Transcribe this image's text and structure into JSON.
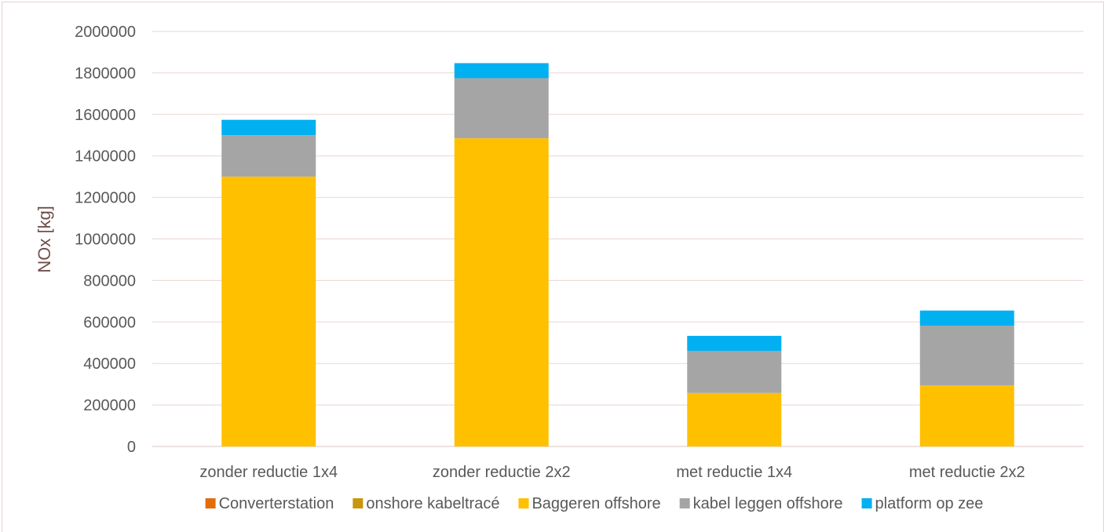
{
  "chart_data": {
    "type": "bar",
    "stacked": true,
    "ylabel": "NOx [kg]",
    "xlabel": "",
    "ylim": [
      0,
      2000000
    ],
    "yticks": [
      0,
      200000,
      400000,
      600000,
      800000,
      1000000,
      1200000,
      1400000,
      1600000,
      1800000,
      2000000
    ],
    "ytick_labels": [
      "0",
      "200000",
      "400000",
      "600000",
      "800000",
      "1000000",
      "1200000",
      "1400000",
      "1600000",
      "1800000",
      "2000000"
    ],
    "categories": [
      "zonder reductie 1x4",
      "zonder reductie 2x2",
      "met reductie 1x4",
      "met reductie 2x2"
    ],
    "grid": true,
    "legend_position": "bottom",
    "series": [
      {
        "name": "Converterstation",
        "color": "#e36c0a",
        "values": [
          0,
          0,
          0,
          0
        ]
      },
      {
        "name": "onshore kabeltracé",
        "color": "#c9950c",
        "values": [
          0,
          0,
          0,
          0
        ]
      },
      {
        "name": "Baggeren offshore",
        "color": "#ffc000",
        "values": [
          1300000,
          1485000,
          258000,
          295000
        ]
      },
      {
        "name": "kabel leggen offshore",
        "color": "#a5a5a5",
        "values": [
          200000,
          290000,
          202000,
          287000
        ]
      },
      {
        "name": "platform op zee",
        "color": "#00b0f0",
        "values": [
          74000,
          72000,
          73000,
          73000
        ]
      }
    ]
  }
}
